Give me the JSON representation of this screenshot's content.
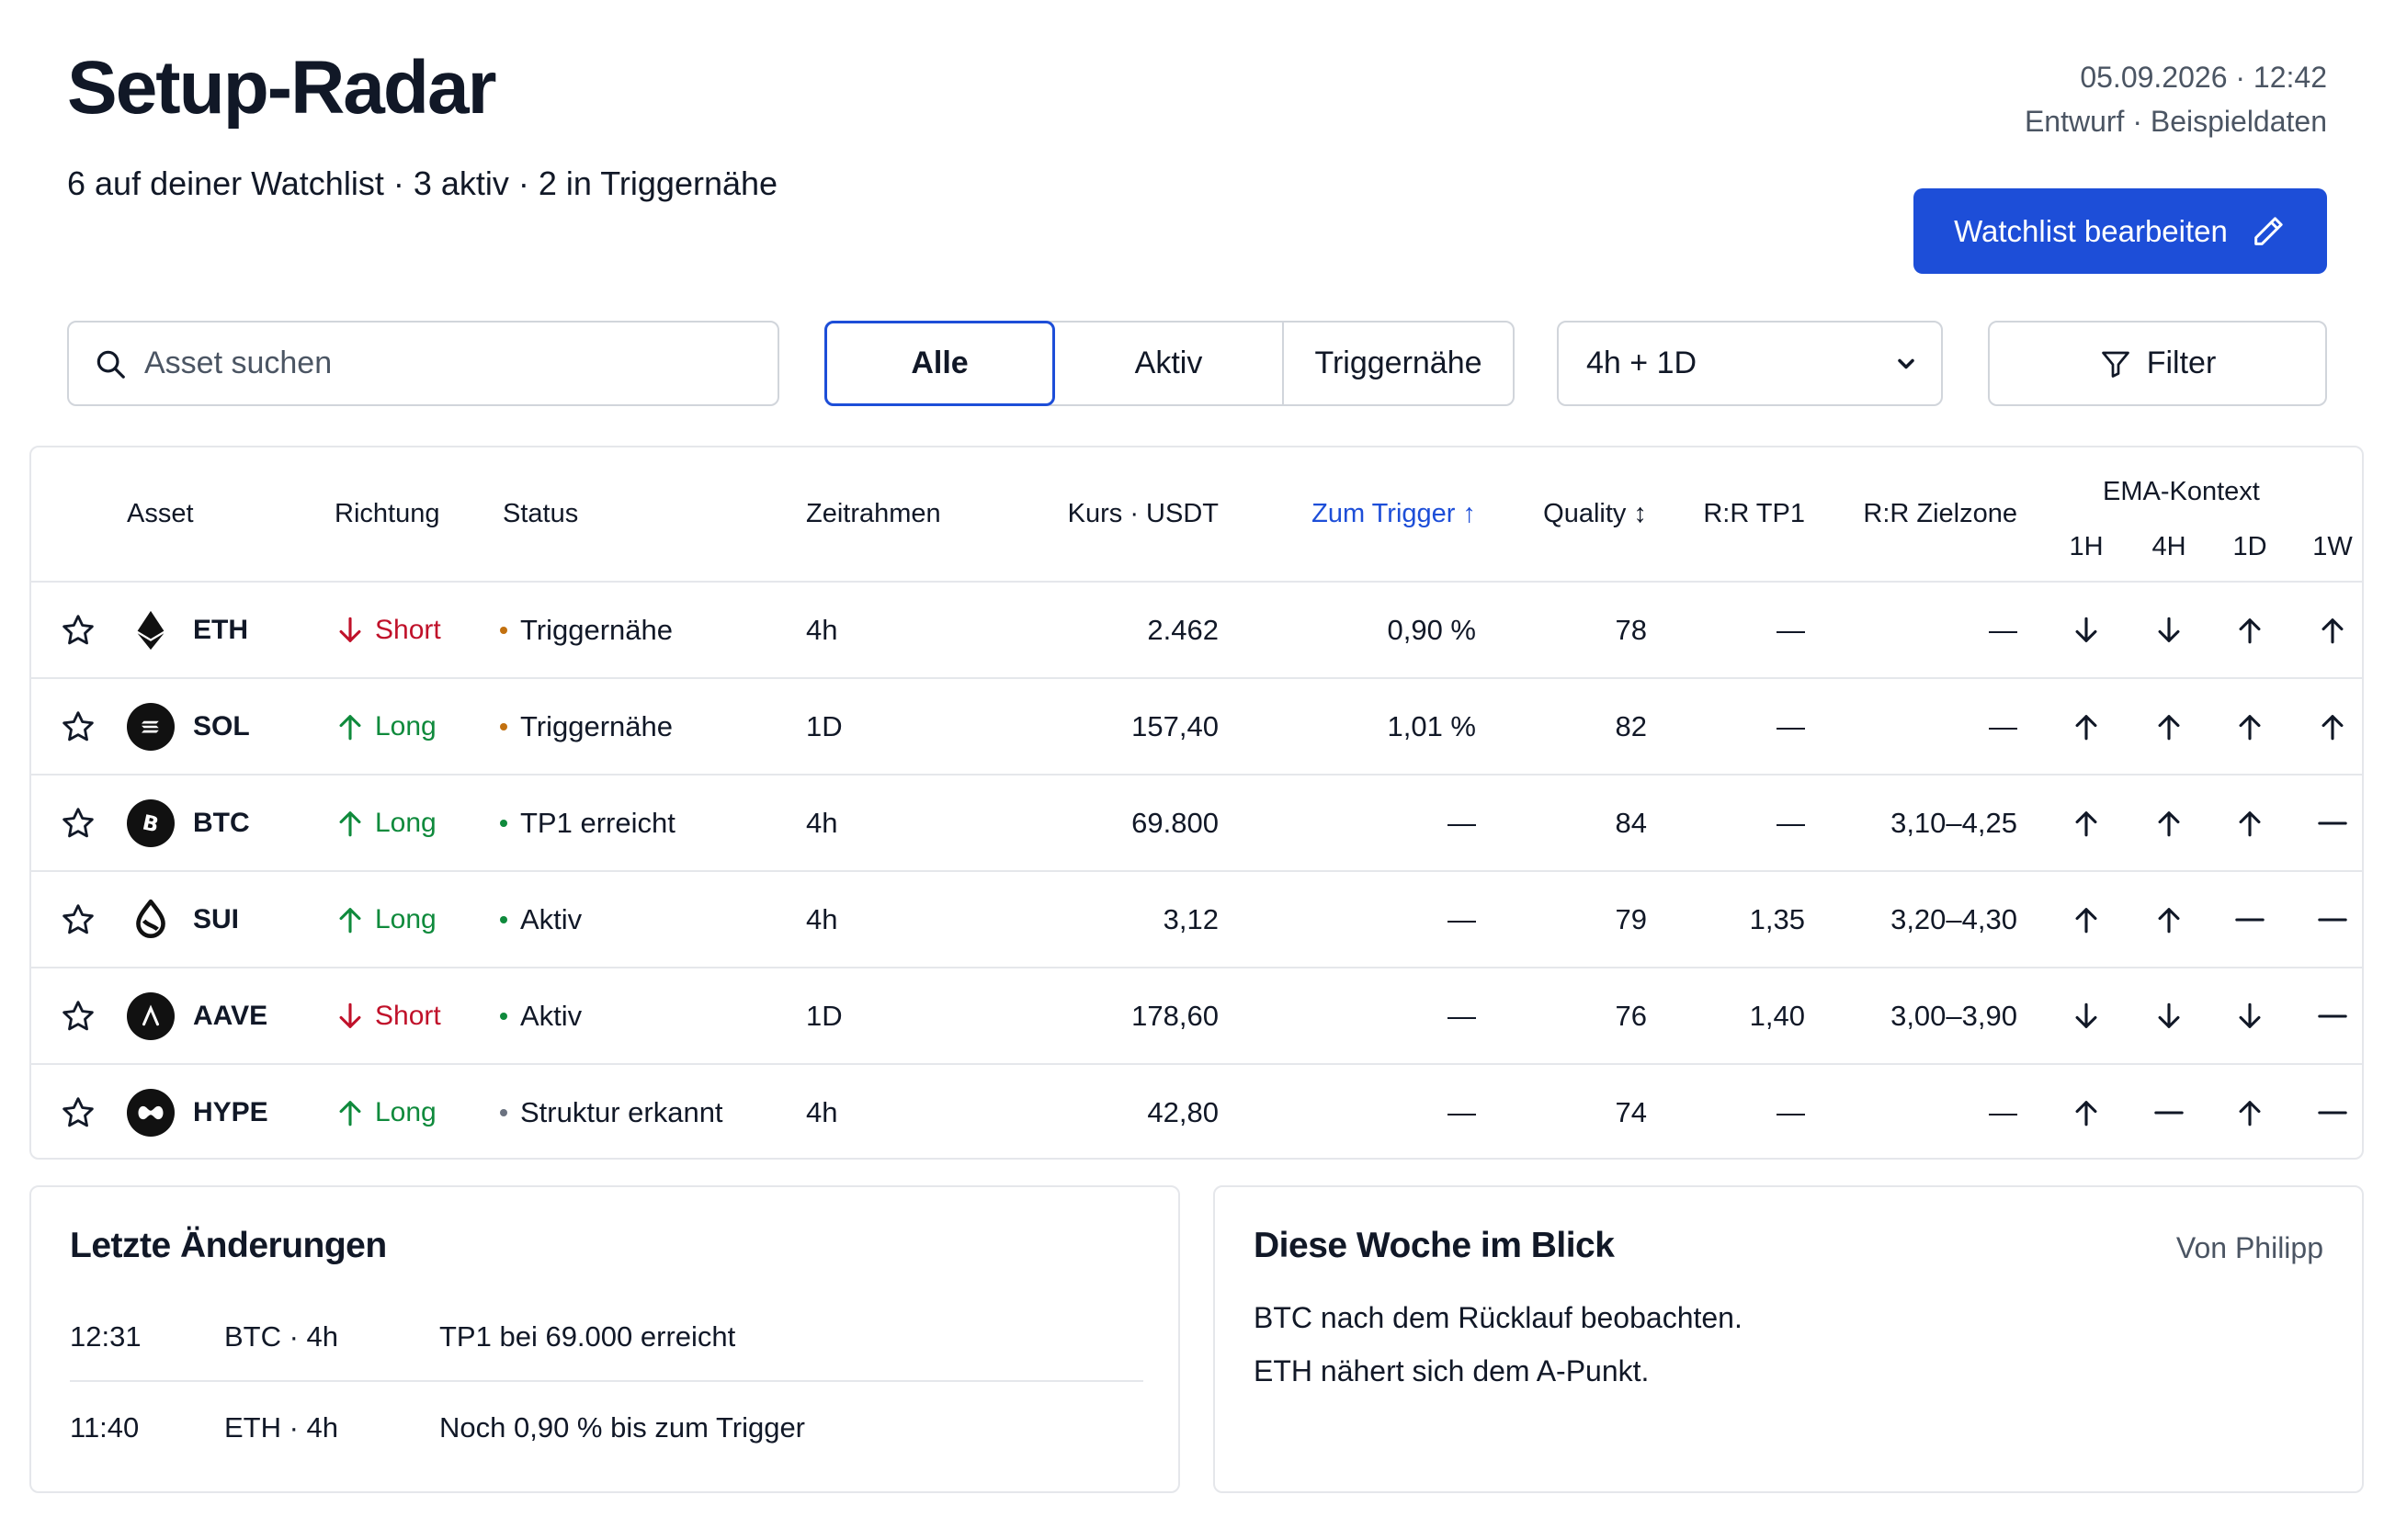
{
  "header": {
    "title": "Setup-Radar",
    "subtitle": "6 auf deiner Watchlist · 3 aktiv · 2 in Triggernähe",
    "datetime": "05.09.2026 · 12:42",
    "draft_note": "Entwurf · Beispieldaten",
    "edit_button": "Watchlist bearbeiten"
  },
  "toolbar": {
    "search_placeholder": "Asset suchen",
    "segments": [
      "Alle",
      "Aktiv",
      "Triggernähe"
    ],
    "active_segment": "Alle",
    "timeframe_select": "4h + 1D",
    "filter_label": "Filter"
  },
  "table": {
    "headers": {
      "asset": "Asset",
      "direction": "Richtung",
      "status": "Status",
      "timeframe": "Zeitrahmen",
      "price": "Kurs · USDT",
      "trigger": "Zum Trigger ↑",
      "quality": "Quality ↕",
      "rr_tp1": "R:R TP1",
      "rr_zone": "R:R Zielzone",
      "ema": "EMA-Kontext",
      "ema_1h": "1H",
      "ema_4h": "4H",
      "ema_1d": "1D",
      "ema_1w": "1W"
    },
    "rows": [
      {
        "asset": "ETH",
        "direction": "Short",
        "status": "Triggernähe",
        "status_color": "#c2700f",
        "timeframe": "4h",
        "price": "2.462",
        "trigger": "0,90 %",
        "quality": "78",
        "rr_tp1": "—",
        "rr_zone": "—",
        "ema": [
          "down",
          "down",
          "up",
          "up"
        ]
      },
      {
        "asset": "SOL",
        "direction": "Long",
        "status": "Triggernähe",
        "status_color": "#c2700f",
        "timeframe": "1D",
        "price": "157,40",
        "trigger": "1,01 %",
        "quality": "82",
        "rr_tp1": "—",
        "rr_zone": "—",
        "ema": [
          "up",
          "up",
          "up",
          "up"
        ]
      },
      {
        "asset": "BTC",
        "direction": "Long",
        "status": "TP1 erreicht",
        "status_color": "#0f8a3c",
        "timeframe": "4h",
        "price": "69.800",
        "trigger": "—",
        "quality": "84",
        "rr_tp1": "—",
        "rr_zone": "3,10–4,25",
        "ema": [
          "up",
          "up",
          "up",
          "flat"
        ]
      },
      {
        "asset": "SUI",
        "direction": "Long",
        "status": "Aktiv",
        "status_color": "#0f8a3c",
        "timeframe": "4h",
        "price": "3,12",
        "trigger": "—",
        "quality": "79",
        "rr_tp1": "1,35",
        "rr_zone": "3,20–4,30",
        "ema": [
          "up",
          "up",
          "flat",
          "flat"
        ]
      },
      {
        "asset": "AAVE",
        "direction": "Short",
        "status": "Aktiv",
        "status_color": "#0f8a3c",
        "timeframe": "1D",
        "price": "178,60",
        "trigger": "—",
        "quality": "76",
        "rr_tp1": "1,40",
        "rr_zone": "3,00–3,90",
        "ema": [
          "down",
          "down",
          "down",
          "flat"
        ]
      },
      {
        "asset": "HYPE",
        "direction": "Long",
        "status": "Struktur erkannt",
        "status_color": "#6b7280",
        "timeframe": "4h",
        "price": "42,80",
        "trigger": "—",
        "quality": "74",
        "rr_tp1": "—",
        "rr_zone": "—",
        "ema": [
          "up",
          "flat",
          "up",
          "flat"
        ]
      }
    ]
  },
  "changes": {
    "title": "Letzte Änderungen",
    "items": [
      {
        "time": "12:31",
        "asset": "BTC · 4h",
        "text": "TP1 bei 69.000 erreicht"
      },
      {
        "time": "11:40",
        "asset": "ETH · 4h",
        "text": "Noch 0,90 % bis zum Trigger"
      }
    ]
  },
  "weekly": {
    "title": "Diese Woche im Blick",
    "author": "Von Philipp",
    "lines": [
      "BTC nach dem Rücklauf beobachten.",
      "ETH nähert sich dem A-Punkt."
    ]
  },
  "colors": {
    "accent": "#1d4ed8",
    "short": "#c0112a",
    "long": "#0f8a3c",
    "near_trigger": "#c2700f",
    "border": "#e5e7eb"
  }
}
